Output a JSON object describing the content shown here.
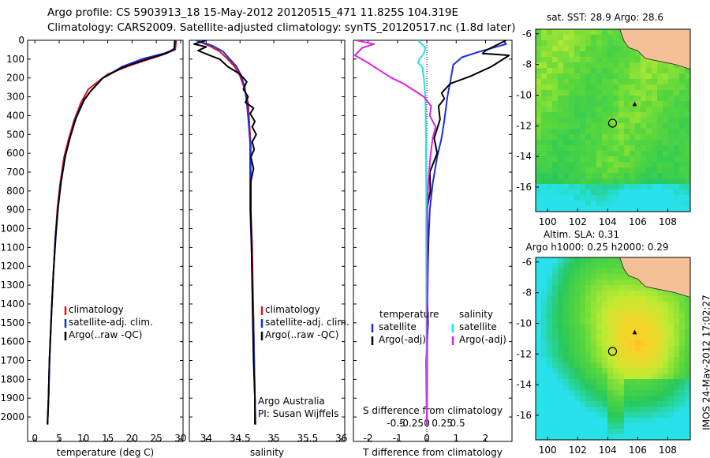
{
  "title_line1": "Argo profile: CS 5903913_18 15-May-2012 20120515_471 11.825S 104.319E",
  "title_line2": "Climatology: CARS2009. Satellite-adjusted climatology: synTS_20120517.nc (1.8d later)",
  "timestamp": "IMOS 24-May-2012 17:02:27",
  "colors": {
    "climatology": "#e0141e",
    "satellite": "#1a2ee0",
    "argo": "#000000",
    "cyan": "#22e0e8",
    "magenta": "#e020e0"
  },
  "chart_data": [
    {
      "type": "line",
      "xlabel": "temperature (deg C)",
      "ylim": [
        2050,
        0
      ],
      "xlim": [
        -1.5,
        30.5
      ],
      "xticks": [
        0,
        5,
        10,
        15,
        20,
        25,
        30
      ],
      "yticks": [
        0,
        100,
        200,
        300,
        400,
        500,
        600,
        700,
        800,
        900,
        1000,
        1100,
        1200,
        1300,
        1400,
        1500,
        1600,
        1700,
        1800,
        1900,
        2000
      ],
      "legend": [
        "climatology",
        "satellite-adj. clim.",
        "Argo(..raw -QC)"
      ],
      "legend_position": "lower-center",
      "series": [
        {
          "name": "climatology",
          "color": "climatology",
          "points": [
            [
              29.1,
              0
            ],
            [
              28.9,
              50
            ],
            [
              26,
              80
            ],
            [
              20,
              130
            ],
            [
              15,
              180
            ],
            [
              11,
              260
            ],
            [
              9.5,
              330
            ],
            [
              8,
              430
            ],
            [
              7,
              520
            ],
            [
              6,
              620
            ],
            [
              5.2,
              760
            ],
            [
              4.6,
              900
            ],
            [
              4.2,
              1050
            ],
            [
              3.8,
              1250
            ],
            [
              3.4,
              1450
            ],
            [
              3.0,
              1700
            ],
            [
              2.8,
              1900
            ],
            [
              2.6,
              2040
            ]
          ]
        },
        {
          "name": "satellite-adj. clim.",
          "color": "satellite",
          "points": [
            [
              29,
              0
            ],
            [
              28.7,
              50
            ],
            [
              26.5,
              70
            ],
            [
              22,
              100
            ],
            [
              18,
              140
            ],
            [
              14,
              200
            ],
            [
              11.5,
              270
            ],
            [
              10,
              320
            ],
            [
              8.3,
              420
            ],
            [
              7.2,
              520
            ],
            [
              6.2,
              620
            ],
            [
              5.3,
              760
            ],
            [
              4.7,
              900
            ],
            [
              4.2,
              1050
            ],
            [
              3.8,
              1250
            ],
            [
              3.4,
              1450
            ],
            [
              3.0,
              1700
            ],
            [
              2.8,
              1900
            ],
            [
              2.6,
              2040
            ]
          ]
        },
        {
          "name": "Argo(..raw -QC)",
          "color": "argo",
          "points": [
            [
              28.8,
              0
            ],
            [
              28.7,
              45
            ],
            [
              27,
              70
            ],
            [
              23,
              100
            ],
            [
              18,
              145
            ],
            [
              14,
              200
            ],
            [
              11.5,
              270
            ],
            [
              10.2,
              315
            ],
            [
              8.5,
              410
            ],
            [
              7.3,
              510
            ],
            [
              6.3,
              610
            ],
            [
              5.4,
              750
            ],
            [
              4.8,
              880
            ],
            [
              4.3,
              1040
            ],
            [
              3.8,
              1240
            ],
            [
              3.4,
              1450
            ],
            [
              3.0,
              1700
            ],
            [
              2.8,
              1900
            ],
            [
              2.6,
              2040
            ]
          ]
        }
      ]
    },
    {
      "type": "line",
      "xlabel": "salinity",
      "ylim": [
        2050,
        0
      ],
      "xlim": [
        33.75,
        36.05
      ],
      "xticks": [
        34,
        34.5,
        35,
        35.5,
        36
      ],
      "legend": [
        "climatology",
        "satellite-adj. clim.",
        "Argo(..raw -QC)"
      ],
      "legend_position": "lower-right",
      "annotation": [
        "Argo Australia",
        "PI: Susan Wijffels"
      ],
      "series": [
        {
          "name": "climatology",
          "color": "climatology",
          "points": [
            [
              33.85,
              0
            ],
            [
              34.05,
              30
            ],
            [
              34.2,
              60
            ],
            [
              34.32,
              100
            ],
            [
              34.42,
              140
            ],
            [
              34.5,
              190
            ],
            [
              34.56,
              250
            ],
            [
              34.62,
              330
            ],
            [
              34.64,
              450
            ],
            [
              34.66,
              550
            ],
            [
              34.66,
              700
            ],
            [
              34.66,
              900
            ],
            [
              34.68,
              1100
            ],
            [
              34.69,
              1300
            ],
            [
              34.7,
              1500
            ],
            [
              34.71,
              1700
            ],
            [
              34.72,
              1900
            ],
            [
              34.73,
              2040
            ]
          ]
        },
        {
          "name": "satellite-adj. clim.",
          "color": "satellite",
          "points": [
            [
              33.85,
              0
            ],
            [
              34.1,
              30
            ],
            [
              34.25,
              60
            ],
            [
              34.35,
              100
            ],
            [
              34.45,
              140
            ],
            [
              34.52,
              190
            ],
            [
              34.57,
              250
            ],
            [
              34.6,
              330
            ],
            [
              34.63,
              450
            ],
            [
              34.65,
              550
            ],
            [
              34.65,
              700
            ],
            [
              34.65,
              900
            ],
            [
              34.67,
              1100
            ],
            [
              34.68,
              1300
            ],
            [
              34.7,
              1500
            ],
            [
              34.71,
              1700
            ],
            [
              34.72,
              1900
            ],
            [
              34.73,
              2040
            ]
          ]
        },
        {
          "name": "Argo(..raw -QC)",
          "color": "argo",
          "points": [
            [
              34.0,
              0
            ],
            [
              33.82,
              20
            ],
            [
              34.0,
              35
            ],
            [
              33.88,
              55
            ],
            [
              34.05,
              80
            ],
            [
              34.2,
              100
            ],
            [
              34.32,
              140
            ],
            [
              34.5,
              180
            ],
            [
              34.6,
              220
            ],
            [
              34.55,
              260
            ],
            [
              34.62,
              300
            ],
            [
              34.58,
              330
            ],
            [
              34.7,
              360
            ],
            [
              34.65,
              390
            ],
            [
              34.72,
              430
            ],
            [
              34.68,
              460
            ],
            [
              34.74,
              500
            ],
            [
              34.68,
              540
            ],
            [
              34.71,
              580
            ],
            [
              34.66,
              620
            ],
            [
              34.7,
              680
            ],
            [
              34.66,
              750
            ],
            [
              34.66,
              900
            ],
            [
              34.67,
              1100
            ],
            [
              34.68,
              1300
            ],
            [
              34.69,
              1500
            ],
            [
              34.7,
              1700
            ],
            [
              34.72,
              1900
            ],
            [
              34.72,
              2040
            ]
          ]
        }
      ]
    },
    {
      "type": "line",
      "xlabel": "T difference from climatology",
      "xlabel2": "S difference from climatology",
      "ylim": [
        2050,
        0
      ],
      "xlim": [
        -2.5,
        2.9
      ],
      "xticks": [
        -2,
        -1,
        0,
        1,
        2
      ],
      "sticks": [
        -0.5,
        -0.25,
        0,
        0.25,
        0.5
      ],
      "sticks_labels": [
        "-0.5",
        "-0.25",
        "0",
        "0.25",
        "0.5"
      ],
      "legend_temperature": {
        "title": "temperature",
        "items": [
          "satellite",
          "Argo(-adj)"
        ]
      },
      "legend_salinity": {
        "title": "salinity",
        "items": [
          "satellite",
          "Argo(-adj)"
        ]
      },
      "series": [
        {
          "name": "temperature satellite",
          "color": "satellite",
          "points": [
            [
              2.6,
              0
            ],
            [
              2.7,
              20
            ],
            [
              1.8,
              60
            ],
            [
              1.2,
              90
            ],
            [
              0.9,
              130
            ],
            [
              0.8,
              220
            ],
            [
              0.7,
              300
            ],
            [
              0.6,
              420
            ],
            [
              0.5,
              520
            ],
            [
              0.35,
              620
            ],
            [
              0.2,
              760
            ],
            [
              0.1,
              900
            ],
            [
              0.05,
              1100
            ],
            [
              0.02,
              1400
            ],
            [
              0.01,
              1800
            ],
            [
              0.0,
              2040
            ]
          ]
        },
        {
          "name": "temperature Argo(-adj)",
          "color": "argo",
          "points": [
            [
              2.7,
              0
            ],
            [
              2.0,
              55
            ],
            [
              1.9,
              70
            ],
            [
              2.8,
              80
            ],
            [
              2.2,
              140
            ],
            [
              1.5,
              190
            ],
            [
              0.8,
              230
            ],
            [
              0.5,
              280
            ],
            [
              0.6,
              310
            ],
            [
              0.4,
              350
            ],
            [
              0.45,
              420
            ],
            [
              0.25,
              520
            ],
            [
              0.35,
              600
            ],
            [
              0.1,
              700
            ],
            [
              0.12,
              800
            ],
            [
              0.0,
              900
            ],
            [
              0.05,
              1100
            ],
            [
              0.0,
              1300
            ],
            [
              0.04,
              1500
            ],
            [
              -0.02,
              1700
            ],
            [
              0.0,
              2040
            ]
          ]
        },
        {
          "name": "salinity satellite",
          "color": "cyan",
          "points": [
            [
              -0.3,
              0
            ],
            [
              -0.05,
              40
            ],
            [
              -0.1,
              70
            ],
            [
              -0.25,
              100
            ],
            [
              -0.3,
              120
            ],
            [
              -0.15,
              145
            ],
            [
              -0.1,
              200
            ],
            [
              -0.05,
              300
            ],
            [
              -0.03,
              500
            ],
            [
              -0.02,
              800
            ],
            [
              -0.02,
              1200
            ],
            [
              -0.01,
              1600
            ],
            [
              0.0,
              2040
            ]
          ]
        },
        {
          "name": "salinity Argo(-adj)",
          "color": "magenta",
          "points": [
            [
              -2.4,
              0
            ],
            [
              -1.8,
              20
            ],
            [
              -2.2,
              40
            ],
            [
              -2.45,
              80
            ],
            [
              -2.0,
              120
            ],
            [
              -1.6,
              160
            ],
            [
              -1.2,
              200
            ],
            [
              -0.8,
              230
            ],
            [
              -0.4,
              270
            ],
            [
              -0.1,
              300
            ],
            [
              0.15,
              350
            ],
            [
              0.1,
              400
            ],
            [
              0.3,
              460
            ],
            [
              0.2,
              520
            ],
            [
              0.15,
              580
            ],
            [
              0.1,
              650
            ],
            [
              0.05,
              750
            ],
            [
              0.02,
              900
            ],
            [
              0.02,
              1200
            ],
            [
              0.01,
              1600
            ],
            [
              0.0,
              2040
            ]
          ]
        }
      ]
    },
    {
      "type": "heatmap",
      "title": "sat. SST: 28.9 Argo: 28.6",
      "xticks": [
        100,
        102,
        104,
        106,
        108
      ],
      "yticks": [
        -6,
        -8,
        -10,
        -12,
        -14,
        -16
      ],
      "xlim": [
        99.2,
        109.5
      ],
      "ylim": [
        -17.6,
        -5.7
      ],
      "argo_location": [
        104.32,
        -11.83
      ],
      "marker": [
        105.8,
        -10.6
      ]
    },
    {
      "type": "heatmap",
      "title": "Altim. SLA: 0.31",
      "subtitle": "Argo h1000: 0.25 h2000: 0.29",
      "xticks": [
        100,
        102,
        104,
        106,
        108
      ],
      "yticks": [
        -6,
        -8,
        -10,
        -12,
        -14,
        -16
      ],
      "xlim": [
        99.2,
        109.5
      ],
      "ylim": [
        -17.6,
        -5.7
      ],
      "argo_location": [
        104.32,
        -11.83
      ],
      "marker": [
        105.8,
        -10.6
      ]
    }
  ]
}
